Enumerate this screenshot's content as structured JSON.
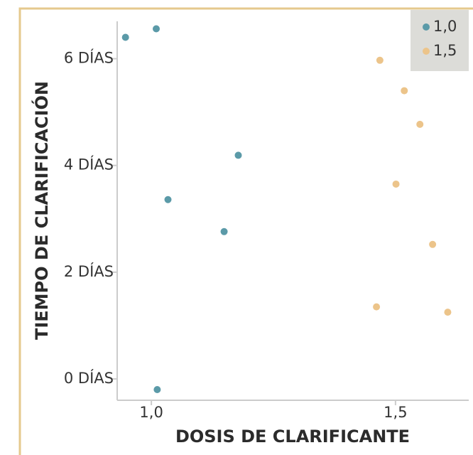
{
  "chart_data": {
    "type": "scatter",
    "x_label": "DOSIS DE CLARIFICANTE",
    "y_label": "TIEMPO DE CLARIFICACIÓN",
    "xlim": [
      0.93,
      1.65
    ],
    "ylim": [
      -0.4,
      6.7
    ],
    "xticks": [
      {
        "value": 1.0,
        "label": "1,0"
      },
      {
        "value": 1.5,
        "label": "1,5"
      }
    ],
    "yticks": [
      {
        "value": 0,
        "label": "0 DÍAS"
      },
      {
        "value": 2,
        "label": "2 DÍAS"
      },
      {
        "value": 4,
        "label": "4 DÍAS"
      },
      {
        "value": 6,
        "label": "6 DÍAS"
      }
    ],
    "legend": "upper right",
    "series": [
      {
        "name": "1,0",
        "color": "#5b9aa8",
        "x": [
          0.947,
          1.01,
          1.178,
          1.034,
          1.149,
          1.012
        ],
        "values": [
          6.4,
          6.56,
          4.19,
          3.36,
          2.76,
          -0.2
        ]
      },
      {
        "name": "1,5",
        "color": "#ecc48a",
        "x": [
          1.468,
          1.518,
          1.55,
          1.501,
          1.576,
          1.461,
          1.607
        ],
        "values": [
          5.97,
          5.4,
          4.77,
          3.65,
          2.52,
          1.35,
          1.25
        ]
      }
    ]
  }
}
